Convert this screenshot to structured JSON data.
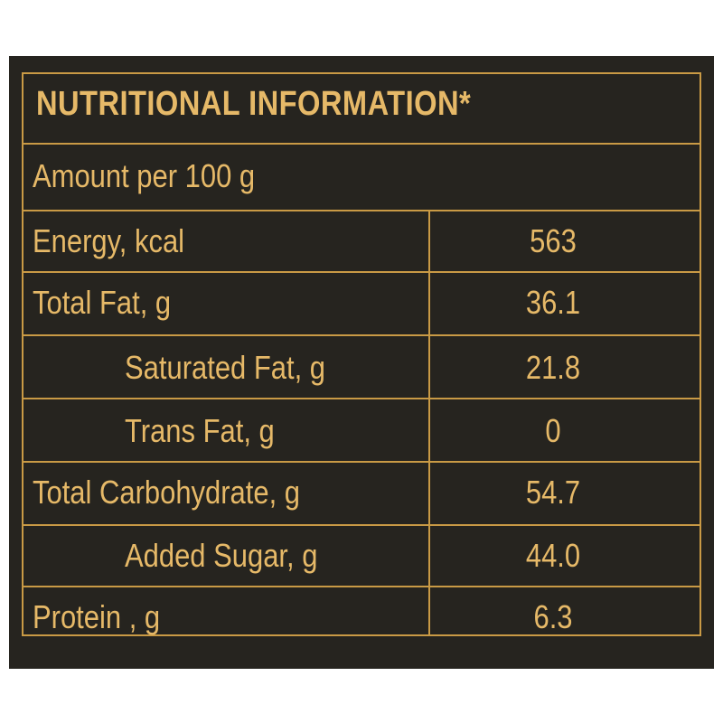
{
  "title": "NUTRITIONAL INFORMATION*",
  "subheader": "Amount per 100 g",
  "rows": [
    {
      "label": "Energy, kcal",
      "value": "563"
    },
    {
      "label": "Total Fat, g",
      "value": "36.1"
    },
    {
      "label": "Saturated Fat, g",
      "value": "21.8"
    },
    {
      "label": "Trans Fat, g",
      "value": "0"
    },
    {
      "label": "Total Carbohydrate, g",
      "value": "54.7"
    },
    {
      "label": "Added Sugar, g",
      "value": "44.0"
    },
    {
      "label": "Protein , g",
      "value": "6.3"
    }
  ],
  "colors": {
    "background": "#26241f",
    "text": "#e6b968",
    "rule": "#c99a45"
  }
}
